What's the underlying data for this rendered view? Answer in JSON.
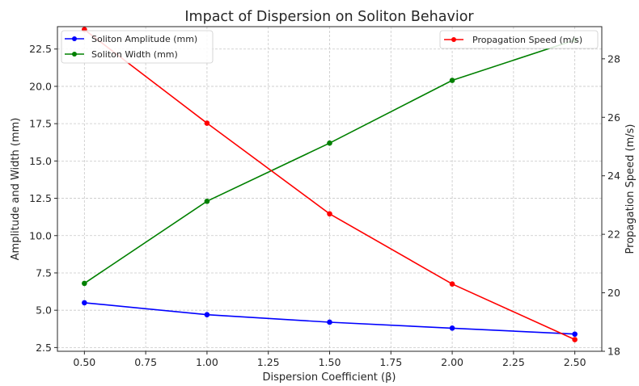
{
  "chart_data": {
    "type": "line",
    "title": "Impact of Dispersion on Soliton Behavior",
    "xlabel": "Dispersion Coefficient (β)",
    "ylabel_left": "Amplitude and Width (mm)",
    "ylabel_right": "Propagation Speed (m/s)",
    "x": [
      0.5,
      1.0,
      1.5,
      2.0,
      2.5
    ],
    "xlim": [
      0.39,
      2.61
    ],
    "ylim_left": [
      2.25,
      24.0
    ],
    "ylim_right": [
      18.0,
      29.1
    ],
    "x_ticks": [
      "0.50",
      "0.75",
      "1.00",
      "1.25",
      "1.50",
      "1.75",
      "2.00",
      "2.25",
      "2.50"
    ],
    "x_tick_values": [
      0.5,
      0.75,
      1.0,
      1.25,
      1.5,
      1.75,
      2.0,
      2.25,
      2.5
    ],
    "y_left_ticks": [
      "2.5",
      "5.0",
      "7.5",
      "10.0",
      "12.5",
      "15.0",
      "17.5",
      "20.0",
      "22.5"
    ],
    "y_left_tick_values": [
      2.5,
      5.0,
      7.5,
      10.0,
      12.5,
      15.0,
      17.5,
      20.0,
      22.5
    ],
    "y_right_ticks": [
      "18",
      "20",
      "22",
      "24",
      "26",
      "28"
    ],
    "y_right_tick_values": [
      18,
      20,
      22,
      24,
      26,
      28
    ],
    "grid": true,
    "series": [
      {
        "name": "Soliton Amplitude (mm)",
        "axis": "left",
        "color": "#0000ff",
        "values": [
          5.5,
          4.7,
          4.2,
          3.8,
          3.4
        ]
      },
      {
        "name": "Soliton Width (mm)",
        "axis": "left",
        "color": "#008000",
        "values": [
          6.8,
          12.3,
          16.2,
          20.4,
          23.1
        ]
      },
      {
        "name": "Propagation Speed (m/s)",
        "axis": "right",
        "color": "#ff0000",
        "values": [
          29.0,
          25.8,
          22.7,
          20.3,
          18.4
        ]
      }
    ],
    "legend_left": [
      "Soliton Amplitude (mm)",
      "Soliton Width (mm)"
    ],
    "legend_right": [
      "Propagation Speed (m/s)"
    ],
    "legend_left_placement": "top-left",
    "legend_right_placement": "top-right"
  }
}
